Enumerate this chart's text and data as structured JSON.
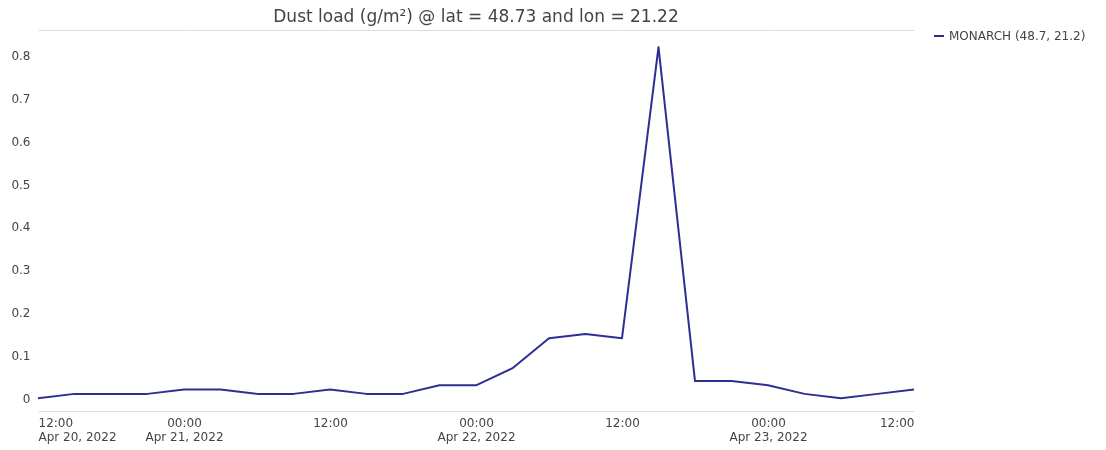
{
  "chart_data": {
    "type": "line",
    "title": "Dust load (g/m²) @ lat = 48.73 and lon = 21.22",
    "x": [
      "2022-04-20T12:00",
      "2022-04-20T15:00",
      "2022-04-20T18:00",
      "2022-04-20T21:00",
      "2022-04-21T00:00",
      "2022-04-21T03:00",
      "2022-04-21T06:00",
      "2022-04-21T09:00",
      "2022-04-21T12:00",
      "2022-04-21T15:00",
      "2022-04-21T18:00",
      "2022-04-21T21:00",
      "2022-04-22T00:00",
      "2022-04-22T03:00",
      "2022-04-22T06:00",
      "2022-04-22T09:00",
      "2022-04-22T12:00",
      "2022-04-22T15:00",
      "2022-04-22T18:00",
      "2022-04-22T21:00",
      "2022-04-23T00:00",
      "2022-04-23T03:00",
      "2022-04-23T06:00",
      "2022-04-23T09:00",
      "2022-04-23T12:00"
    ],
    "series": [
      {
        "name": "MONARCH (48.7, 21.2)",
        "color": "#2e2e94",
        "values": [
          0,
          0.01,
          0.01,
          0.01,
          0.02,
          0.02,
          0.01,
          0.01,
          0.02,
          0.01,
          0.01,
          0.03,
          0.03,
          0.07,
          0.14,
          0.15,
          0.14,
          0.82,
          0.04,
          0.04,
          0.03,
          0.01,
          0,
          0.01,
          0.02
        ]
      }
    ],
    "xlim": [
      "2022-04-20T12:00",
      "2022-04-23T12:00"
    ],
    "xticks": [
      {
        "value": "2022-04-20T12:00",
        "label": "12:00\nApr 20, 2022"
      },
      {
        "value": "2022-04-21T00:00",
        "label": "00:00\nApr 21, 2022"
      },
      {
        "value": "2022-04-21T12:00",
        "label": "12:00"
      },
      {
        "value": "2022-04-22T00:00",
        "label": "00:00\nApr 22, 2022"
      },
      {
        "value": "2022-04-22T12:00",
        "label": "12:00"
      },
      {
        "value": "2022-04-23T00:00",
        "label": "00:00\nApr 23, 2022"
      },
      {
        "value": "2022-04-23T12:00",
        "label": "12:00"
      }
    ],
    "ylim": [
      -0.03,
      0.86
    ],
    "yticks": [
      0,
      0.1,
      0.2,
      0.3,
      0.4,
      0.5,
      0.6,
      0.7,
      0.8
    ],
    "grid": true,
    "legend": "top right",
    "marker": "none",
    "line_style": "solid"
  }
}
